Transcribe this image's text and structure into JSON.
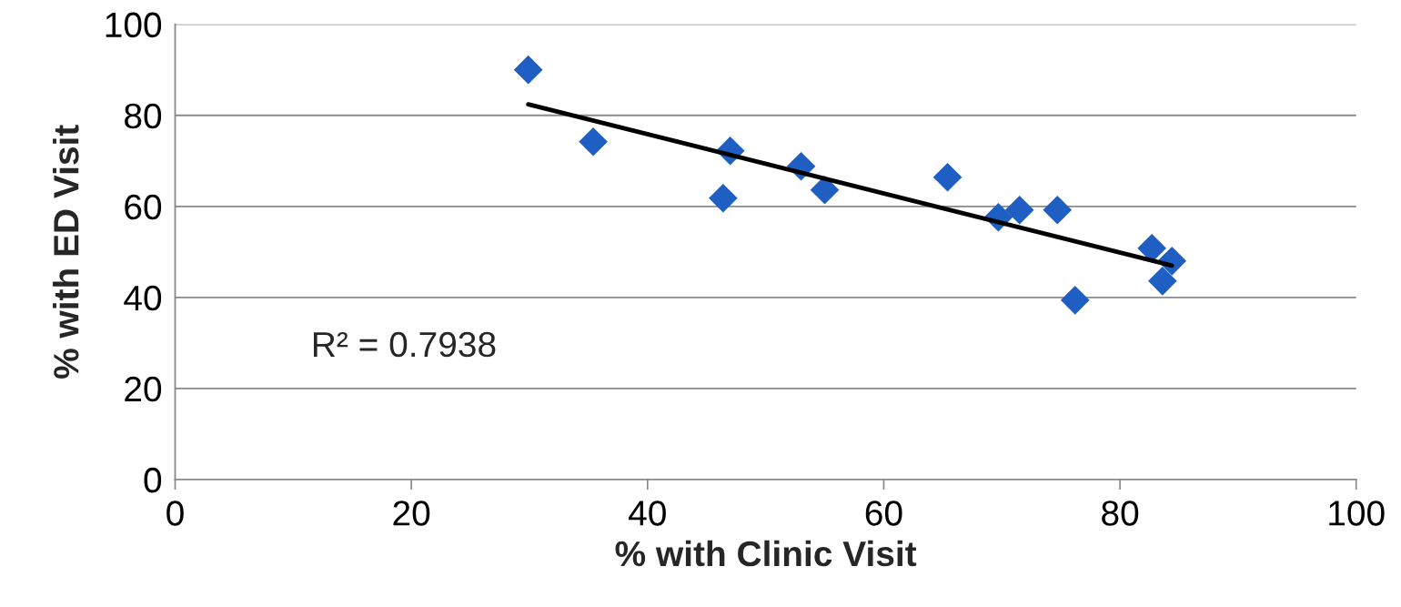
{
  "chart_data": {
    "type": "scatter",
    "xlabel": "% with Clinic Visit",
    "ylabel": "% with ED Visit",
    "series": [
      {
        "color": "#1f5fc4",
        "marker": "diamond",
        "x": [
          29.9,
          35.4,
          47.0,
          46.4,
          53.0,
          55.0,
          65.4,
          69.7,
          71.5,
          74.7,
          76.2,
          82.7,
          84.4,
          83.6
        ],
        "values": [
          90.0,
          74.2,
          72.2,
          61.8,
          68.8,
          63.6,
          66.4,
          57.6,
          59.2,
          59.2,
          39.4,
          50.8,
          48.0,
          43.6
        ]
      },
      {
        "type": "line",
        "color": "#000000",
        "marker": "none",
        "line_style": "solid",
        "x": [
          29.9,
          84.4
        ],
        "values": [
          82.4,
          47.0
        ]
      }
    ],
    "annotations": [
      "R² = 0.7938"
    ],
    "xlim": [
      0,
      100
    ],
    "xticks": [
      0,
      20,
      40,
      60,
      80,
      100
    ],
    "ylim": [
      0,
      100
    ],
    "yticks": [
      0,
      20,
      40,
      60,
      80,
      100
    ],
    "grid": "y"
  }
}
